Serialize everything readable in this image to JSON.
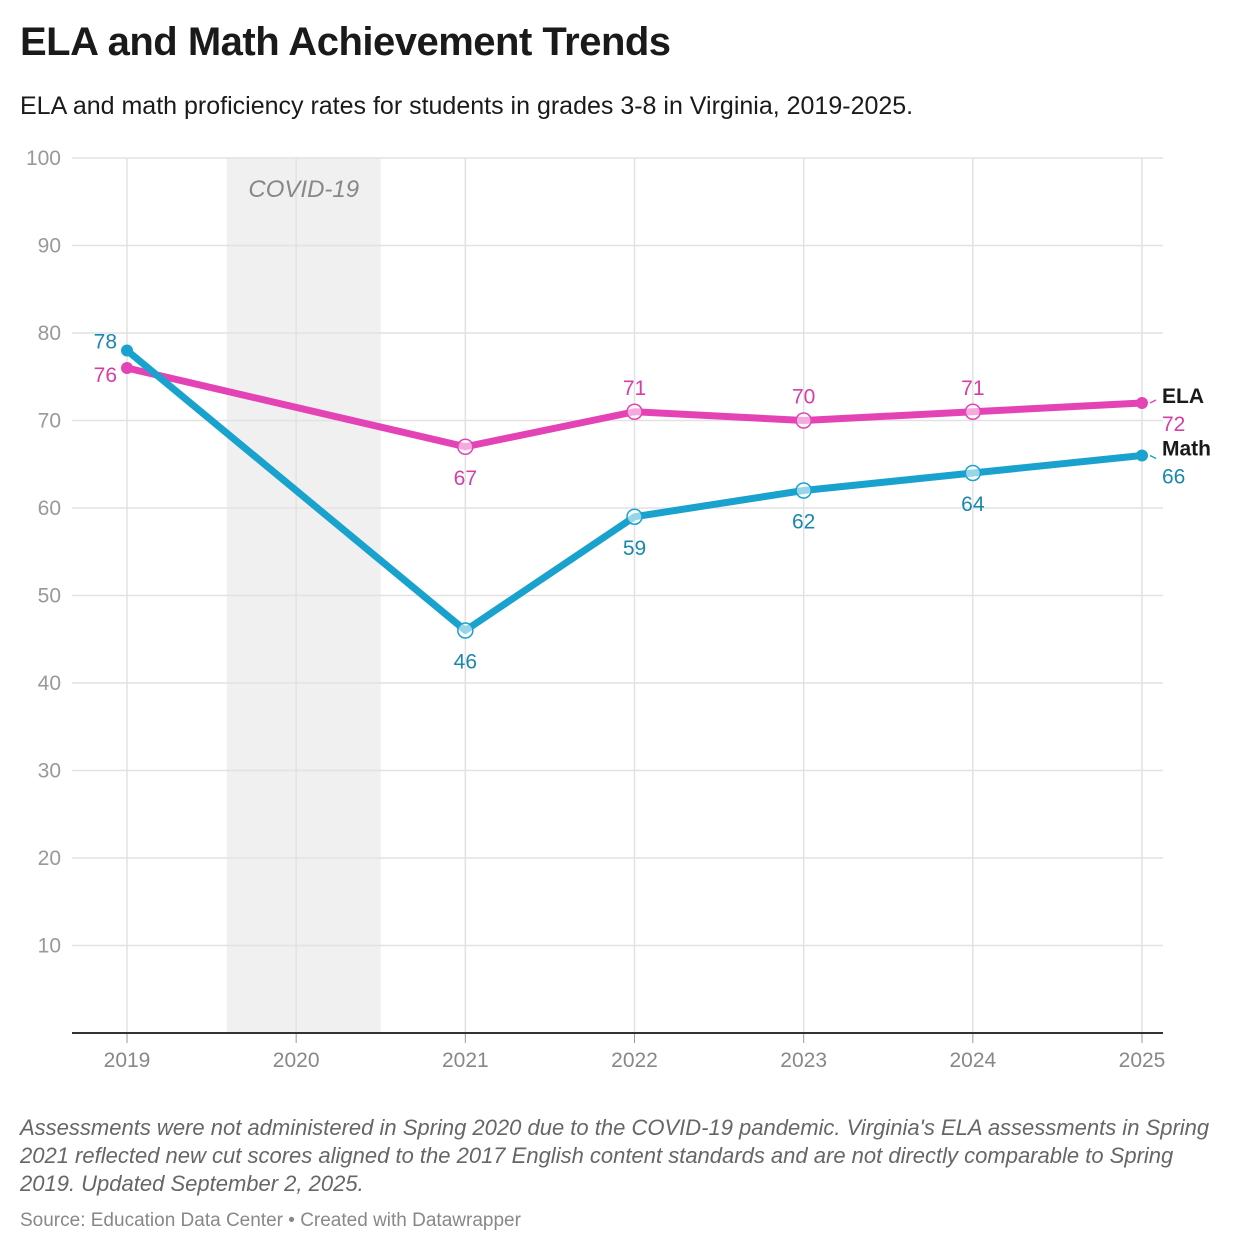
{
  "header": {
    "title": "ELA and Math Achievement Trends",
    "subtitle": "ELA and math proficiency rates for students in grades 3-8 in Virginia, 2019-2025."
  },
  "footer": {
    "notes": "Assessments were not administered in Spring 2020 due to the COVID-19 pandemic. Virginia's ELA assessments in Spring 2021 reflected new cut scores aligned to the 2017 English content standards and are not directly comparable to Spring 2019. Updated September 2, 2025.",
    "source": "Source: Education Data Center • Created with Datawrapper"
  },
  "chart_data": {
    "type": "line",
    "title": "ELA and Math Achievement Trends",
    "subtitle": "ELA and math proficiency rates for students in grades 3-8 in Virginia, 2019-2025.",
    "xlabel": "",
    "ylabel": "",
    "x": [
      2019,
      2020,
      2021,
      2022,
      2023,
      2024,
      2025
    ],
    "x_tick_labels": [
      "2019",
      "2020",
      "2021",
      "2022",
      "2023",
      "2024",
      "2025"
    ],
    "y_ticks": [
      10,
      20,
      30,
      40,
      50,
      60,
      70,
      80,
      90,
      100
    ],
    "ylim": [
      0,
      100
    ],
    "xlim": [
      2019,
      2025
    ],
    "grid": true,
    "highlight_range": {
      "label": "COVID-19",
      "from": 2019.59,
      "to": 2020.5,
      "color": "#f0f0f0"
    },
    "series": [
      {
        "name": "ELA",
        "color": "#e443b5",
        "label_color": "#d43fa7",
        "points": [
          {
            "x": 2019,
            "y": 76,
            "label": "76"
          },
          {
            "x": 2021,
            "y": 67,
            "label": "67"
          },
          {
            "x": 2022,
            "y": 71,
            "label": "71"
          },
          {
            "x": 2023,
            "y": 70,
            "label": "70"
          },
          {
            "x": 2024,
            "y": 71,
            "label": "71"
          },
          {
            "x": 2025,
            "y": 72,
            "label": "72"
          }
        ]
      },
      {
        "name": "Math",
        "color": "#1aa2cf",
        "label_color": "#1a88ad",
        "points": [
          {
            "x": 2019,
            "y": 78,
            "label": "78"
          },
          {
            "x": 2021,
            "y": 46,
            "label": "46"
          },
          {
            "x": 2022,
            "y": 59,
            "label": "59"
          },
          {
            "x": 2023,
            "y": 62,
            "label": "62"
          },
          {
            "x": 2024,
            "y": 64,
            "label": "64"
          },
          {
            "x": 2025,
            "y": 66,
            "label": "66"
          }
        ]
      }
    ]
  }
}
